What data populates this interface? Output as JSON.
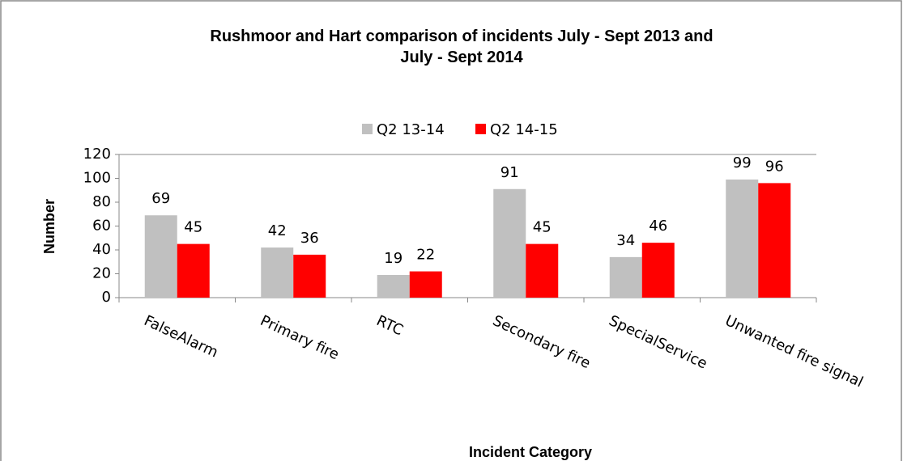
{
  "chart_data": {
    "type": "bar",
    "title": "Rushmoor and Hart comparison of incidents July - Sept 2013 and July - Sept 2014",
    "categories": [
      "FalseAlarm",
      "Primary fire",
      "RTC",
      "Secondary fire",
      "SpecialService",
      "Unwanted fire signal"
    ],
    "series": [
      {
        "name": "Q2 13-14",
        "color": "#c0c0c0",
        "values": [
          69,
          42,
          19,
          91,
          34,
          99
        ]
      },
      {
        "name": "Q2 14-15",
        "color": "#ff0000",
        "values": [
          45,
          36,
          22,
          45,
          46,
          96
        ]
      }
    ],
    "ylim": [
      0,
      120
    ],
    "yticks": [
      0,
      20,
      40,
      60,
      80,
      100,
      120
    ],
    "ylabel": "Number",
    "xlabel": "Incident Category",
    "grid": false,
    "legend": "top"
  }
}
